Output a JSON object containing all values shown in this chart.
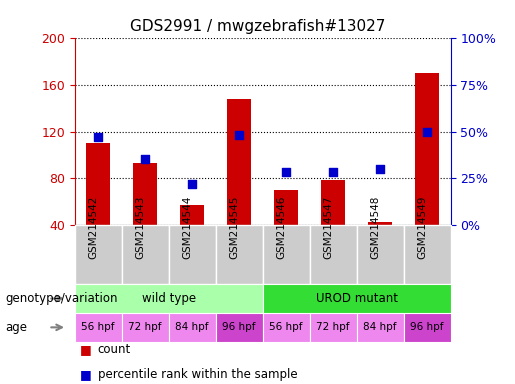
{
  "title": "GDS2991 / mwgzebrafish#13027",
  "samples": [
    "GSM214542",
    "GSM214543",
    "GSM214544",
    "GSM214545",
    "GSM214546",
    "GSM214547",
    "GSM214548",
    "GSM214549"
  ],
  "counts": [
    110,
    93,
    57,
    148,
    70,
    78,
    42,
    170
  ],
  "percentile_ranks": [
    47,
    35,
    22,
    48,
    28,
    28,
    30,
    50
  ],
  "ylim_left": [
    40,
    200
  ],
  "ylim_right": [
    0,
    100
  ],
  "yticks_left": [
    40,
    80,
    120,
    160,
    200
  ],
  "yticks_right": [
    0,
    25,
    50,
    75,
    100
  ],
  "bar_color": "#cc0000",
  "dot_color": "#0000cc",
  "genotype_groups": [
    {
      "label": "wild type",
      "start": 0,
      "end": 4,
      "color": "#aaffaa"
    },
    {
      "label": "UROD mutant",
      "start": 4,
      "end": 8,
      "color": "#33dd33"
    }
  ],
  "age_labels": [
    "56 hpf",
    "72 hpf",
    "84 hpf",
    "96 hpf",
    "56 hpf",
    "72 hpf",
    "84 hpf",
    "96 hpf"
  ],
  "age_colors": [
    "#ee88ee",
    "#ee88ee",
    "#ee88ee",
    "#cc44cc",
    "#ee88ee",
    "#ee88ee",
    "#ee88ee",
    "#cc44cc"
  ],
  "legend_count_color": "#cc0000",
  "legend_dot_color": "#0000cc",
  "xlabel_genotype": "genotype/variation",
  "xlabel_age": "age",
  "tick_label_color_left": "#cc0000",
  "tick_label_color_right": "#0000cc",
  "xtick_bg_color": "#cccccc",
  "title_fontsize": 11,
  "bar_width": 0.5
}
